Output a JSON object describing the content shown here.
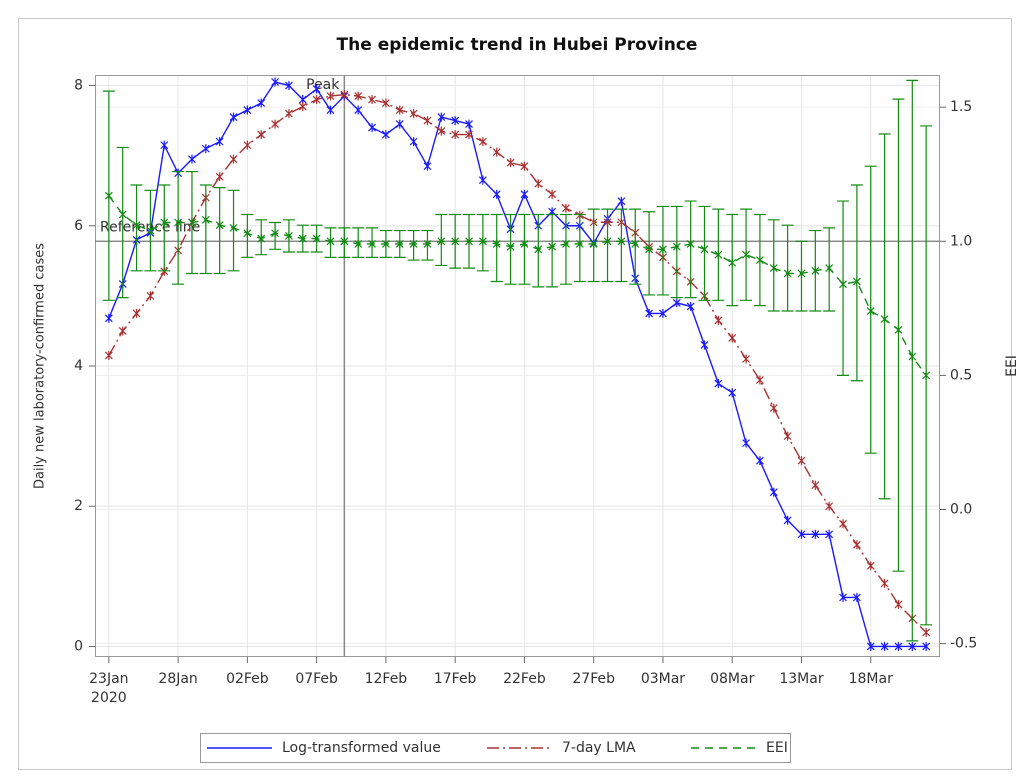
{
  "chart_data": {
    "type": "line",
    "title": "The epidemic trend in Hubei Province",
    "ylabel": "Daily new laboratory-confirmed cases",
    "y2label": "EEI",
    "x": [
      "2020-01-23",
      "2020-01-24",
      "2020-01-25",
      "2020-01-26",
      "2020-01-27",
      "2020-01-28",
      "2020-01-29",
      "2020-01-30",
      "2020-01-31",
      "2020-02-01",
      "2020-02-02",
      "2020-02-03",
      "2020-02-04",
      "2020-02-05",
      "2020-02-06",
      "2020-02-07",
      "2020-02-08",
      "2020-02-09",
      "2020-02-10",
      "2020-02-11",
      "2020-02-12",
      "2020-02-13",
      "2020-02-14",
      "2020-02-15",
      "2020-02-16",
      "2020-02-17",
      "2020-02-18",
      "2020-02-19",
      "2020-02-20",
      "2020-02-21",
      "2020-02-22",
      "2020-02-23",
      "2020-02-24",
      "2020-02-25",
      "2020-02-26",
      "2020-02-27",
      "2020-02-28",
      "2020-02-29",
      "2020-03-01",
      "2020-03-02",
      "2020-03-03",
      "2020-03-04",
      "2020-03-05",
      "2020-03-06",
      "2020-03-07",
      "2020-03-08",
      "2020-03-09",
      "2020-03-10",
      "2020-03-11",
      "2020-03-12",
      "2020-03-13",
      "2020-03-14",
      "2020-03-15",
      "2020-03-16",
      "2020-03-17",
      "2020-03-18",
      "2020-03-19",
      "2020-03-20",
      "2020-03-21",
      "2020-03-22"
    ],
    "xlim": [
      "2020-01-22",
      "2020-03-23"
    ],
    "xticks": [
      {
        "value": "2020-01-23",
        "label": "23Jan"
      },
      {
        "value": "2020-01-28",
        "label": "28Jan"
      },
      {
        "value": "2020-02-02",
        "label": "02Feb"
      },
      {
        "value": "2020-02-07",
        "label": "07Feb"
      },
      {
        "value": "2020-02-12",
        "label": "12Feb"
      },
      {
        "value": "2020-02-17",
        "label": "17Feb"
      },
      {
        "value": "2020-02-22",
        "label": "22Feb"
      },
      {
        "value": "2020-02-27",
        "label": "27Feb"
      },
      {
        "value": "2020-03-03",
        "label": "03Mar"
      },
      {
        "value": "2020-03-08",
        "label": "08Mar"
      },
      {
        "value": "2020-03-13",
        "label": "13Mar"
      },
      {
        "value": "2020-03-18",
        "label": "18Mar"
      }
    ],
    "xtick_year": "2020",
    "ylim": [
      -0.15,
      8.15
    ],
    "yticks": [
      0,
      2,
      4,
      6,
      8
    ],
    "y2lim": [
      -0.55,
      1.62
    ],
    "y2ticks": [
      -0.5,
      {
        "value": 0,
        "label": "0.0"
      },
      0.5,
      {
        "value": 1,
        "label": "1.0"
      },
      1.5
    ],
    "grid": true,
    "peak_line": {
      "x": "2020-02-09",
      "label": "Peak"
    },
    "reference_line": {
      "y2": 1,
      "label": "Reference line"
    },
    "series": [
      {
        "name": "Log-transformed value",
        "color": "#1a1aff",
        "line_style": "solid",
        "values": [
          4.68,
          5.17,
          5.8,
          5.9,
          7.15,
          6.75,
          6.95,
          7.1,
          7.2,
          7.55,
          7.65,
          7.75,
          8.05,
          8.0,
          7.8,
          7.95,
          7.65,
          7.85,
          7.65,
          7.4,
          7.3,
          7.45,
          7.2,
          6.85,
          7.55,
          7.5,
          7.45,
          6.65,
          6.45,
          5.95,
          6.45,
          6.0,
          6.2,
          6.0,
          6.0,
          5.75,
          6.1,
          6.35,
          5.25,
          4.75,
          4.75,
          4.9,
          4.85,
          4.3,
          3.75,
          3.62,
          2.9,
          2.65,
          2.2,
          1.8,
          1.6,
          1.6,
          1.6,
          0.7,
          0.7,
          0,
          0,
          0,
          0,
          0
        ]
      },
      {
        "name": "7-day LMA",
        "color": "#a83232",
        "line_style": "dash-dot",
        "values": [
          4.15,
          4.5,
          4.75,
          5.0,
          5.35,
          5.65,
          6.05,
          6.4,
          6.7,
          6.95,
          7.15,
          7.3,
          7.45,
          7.6,
          7.7,
          7.8,
          7.85,
          7.87,
          7.85,
          7.8,
          7.75,
          7.65,
          7.6,
          7.5,
          7.35,
          7.3,
          7.3,
          7.2,
          7.05,
          6.9,
          6.85,
          6.6,
          6.45,
          6.25,
          6.15,
          6.05,
          6.05,
          6.05,
          5.9,
          5.7,
          5.55,
          5.35,
          5.2,
          5.0,
          4.65,
          4.4,
          4.1,
          3.8,
          3.4,
          3.0,
          2.65,
          2.3,
          2.0,
          1.75,
          1.45,
          1.15,
          0.9,
          0.6,
          0.4,
          0.2
        ]
      },
      {
        "name": "EEI",
        "color": "#138a13",
        "line_style": "dash",
        "axis": "y2",
        "values": [
          1.17,
          1.1,
          1.06,
          1.04,
          1.07,
          1.07,
          1.07,
          1.08,
          1.06,
          1.05,
          1.03,
          1.01,
          1.03,
          1.02,
          1.01,
          1.01,
          1.0,
          1.0,
          0.99,
          0.99,
          0.99,
          0.99,
          0.99,
          0.99,
          1.0,
          1.0,
          1.0,
          1.0,
          0.99,
          0.98,
          0.99,
          0.97,
          0.98,
          0.99,
          0.99,
          0.99,
          1.0,
          1.0,
          0.99,
          0.97,
          0.97,
          0.98,
          0.99,
          0.97,
          0.95,
          0.92,
          0.95,
          0.93,
          0.9,
          0.88,
          0.88,
          0.89,
          0.9,
          0.84,
          0.85,
          0.74,
          0.71,
          0.67,
          0.57,
          0.5
        ],
        "lower": [
          0.78,
          0.79,
          0.89,
          0.89,
          0.89,
          0.84,
          0.88,
          0.88,
          0.88,
          0.89,
          0.94,
          0.95,
          0.97,
          0.96,
          0.96,
          0.96,
          0.94,
          0.94,
          0.94,
          0.94,
          0.94,
          0.94,
          0.93,
          0.93,
          0.91,
          0.9,
          0.9,
          0.89,
          0.85,
          0.84,
          0.84,
          0.83,
          0.83,
          0.84,
          0.85,
          0.85,
          0.85,
          0.85,
          0.84,
          0.8,
          0.8,
          0.79,
          0.79,
          0.78,
          0.78,
          0.76,
          0.78,
          0.76,
          0.74,
          0.74,
          0.74,
          0.74,
          0.74,
          0.5,
          0.48,
          0.21,
          0.04,
          -0.23,
          -0.49,
          -0.43
        ],
        "upper": [
          1.56,
          1.35,
          1.21,
          1.19,
          1.21,
          1.26,
          1.26,
          1.21,
          1.2,
          1.19,
          1.1,
          1.08,
          1.07,
          1.08,
          1.06,
          1.06,
          1.05,
          1.05,
          1.05,
          1.05,
          1.04,
          1.04,
          1.04,
          1.04,
          1.1,
          1.1,
          1.1,
          1.1,
          1.1,
          1.1,
          1.1,
          1.1,
          1.1,
          1.1,
          1.1,
          1.12,
          1.12,
          1.12,
          1.12,
          1.11,
          1.13,
          1.13,
          1.15,
          1.13,
          1.12,
          1.1,
          1.12,
          1.1,
          1.08,
          1.06,
          1.0,
          1.04,
          1.05,
          1.15,
          1.21,
          1.28,
          1.4,
          1.53,
          1.6,
          1.43
        ]
      }
    ]
  }
}
